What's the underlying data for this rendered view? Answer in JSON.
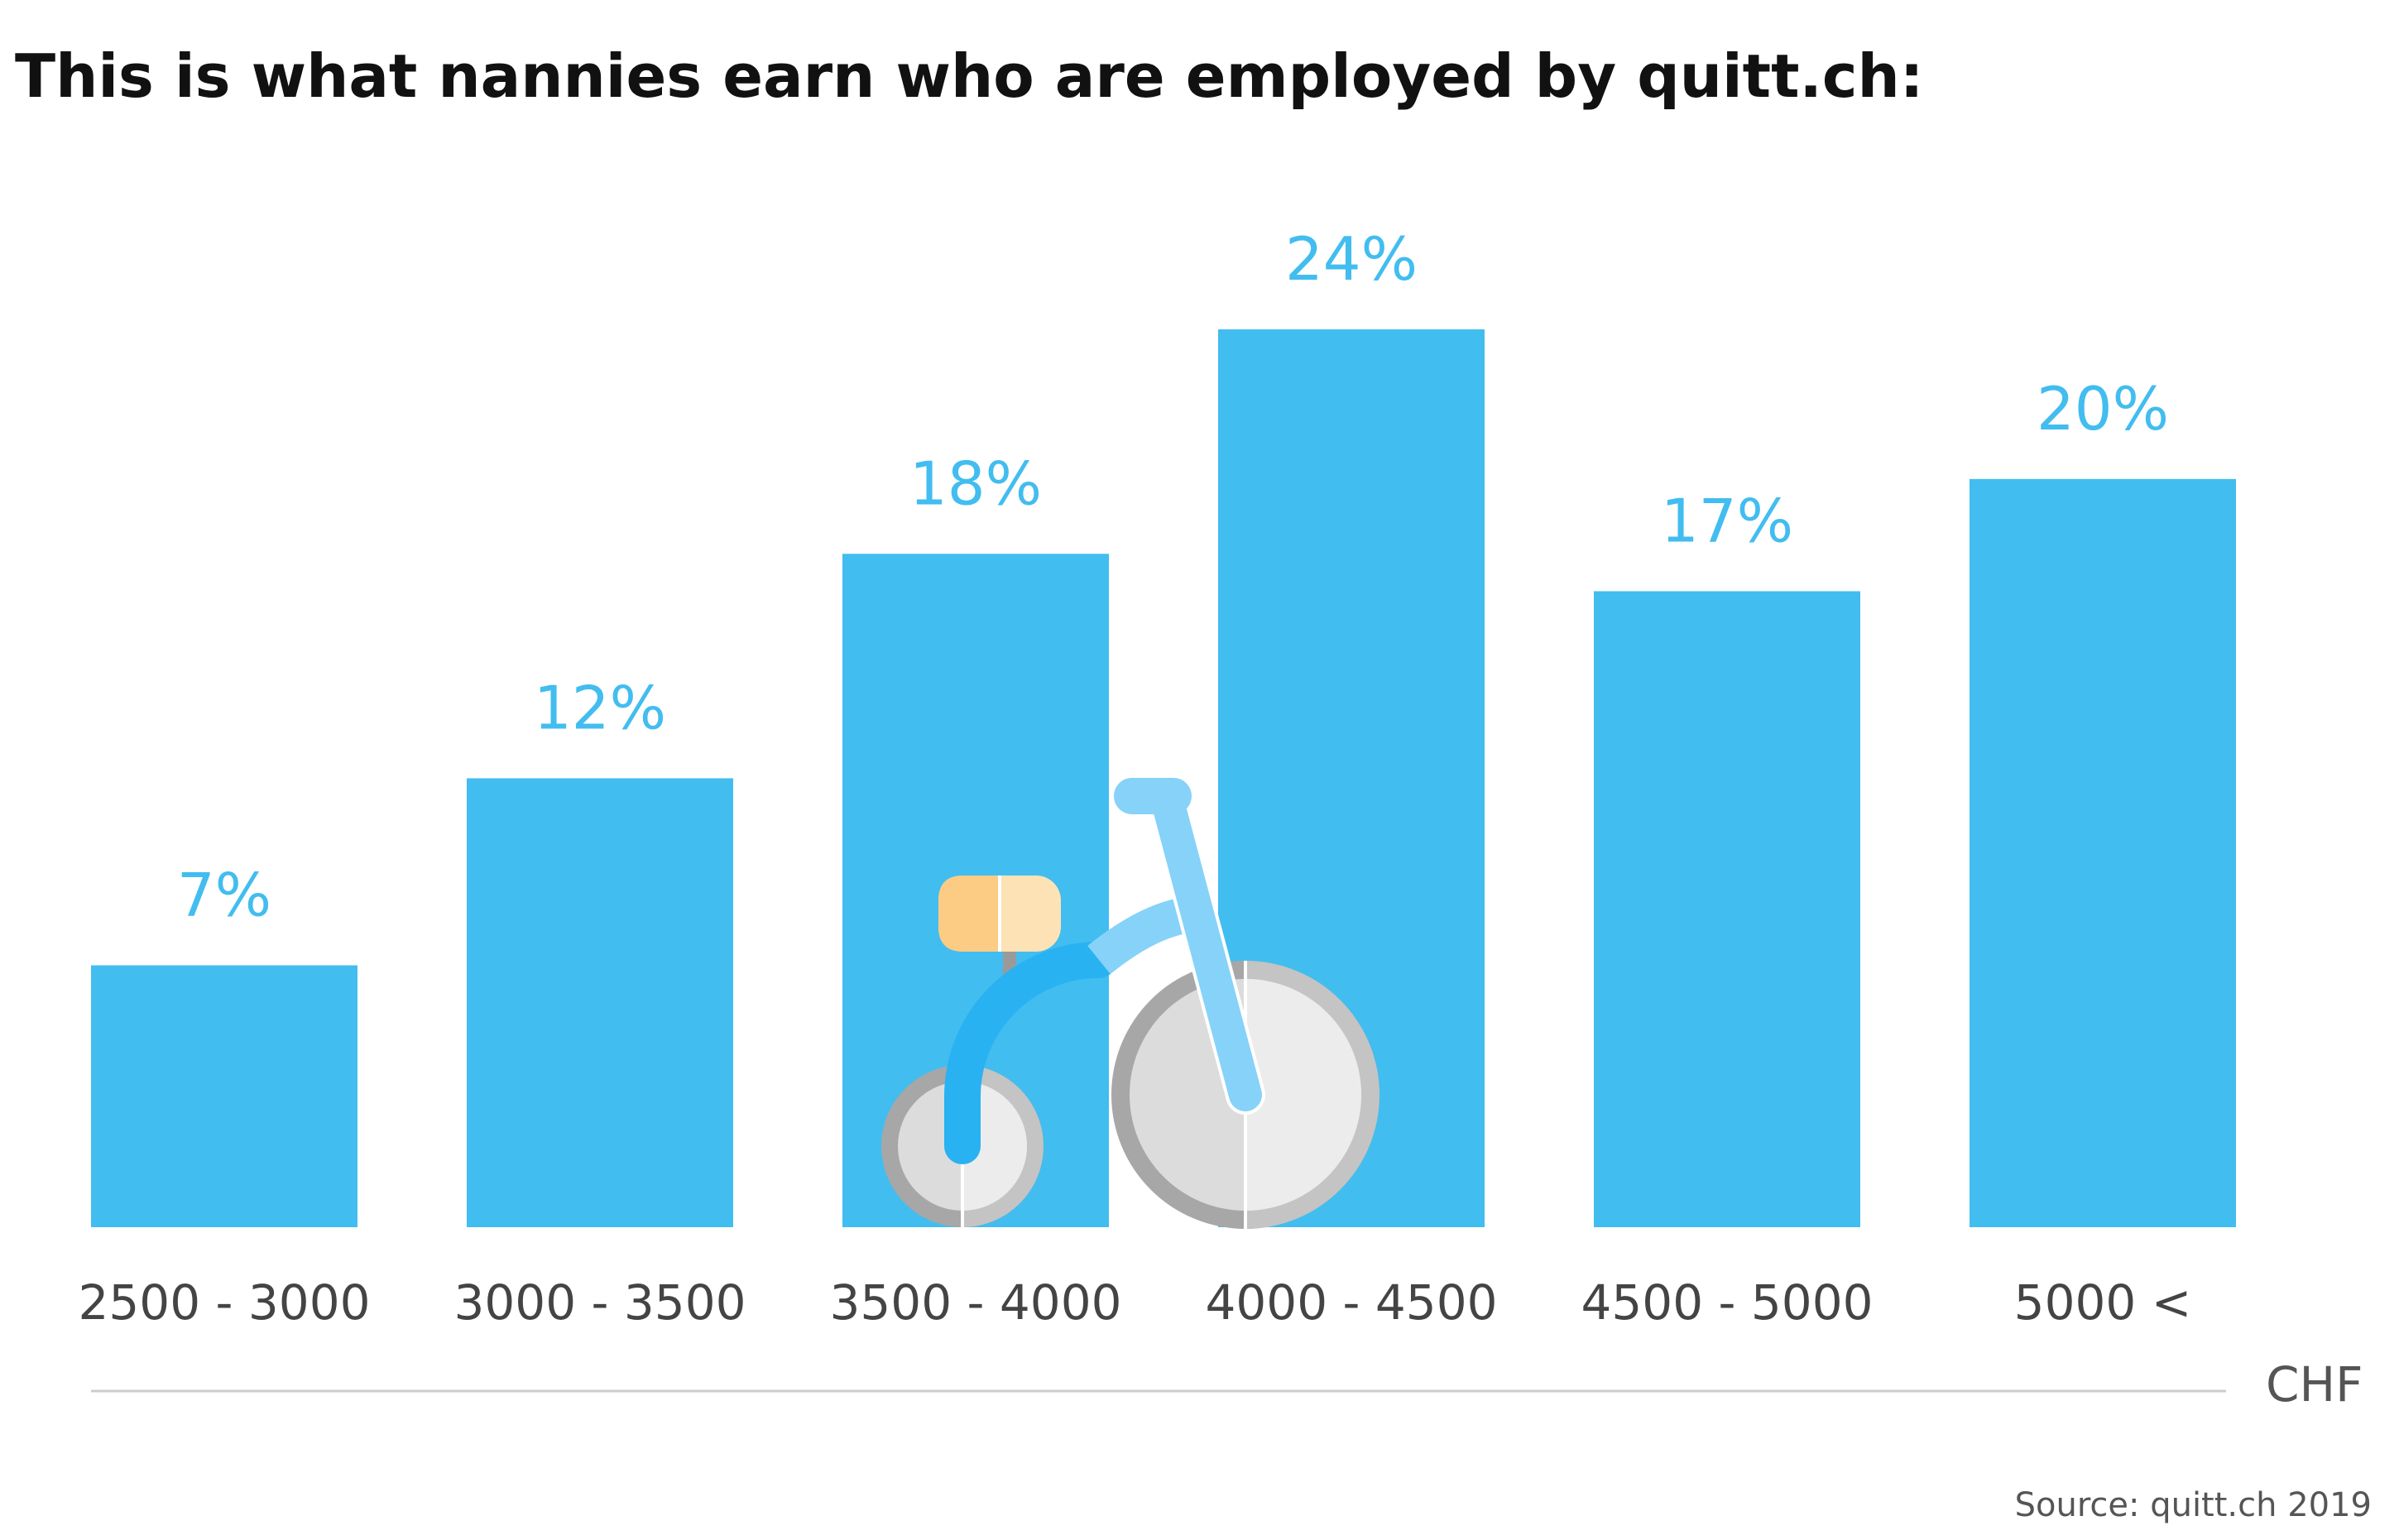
{
  "chart_data": {
    "type": "bar",
    "title": "This is what nannies earn who are employed by quitt.ch:",
    "categories": [
      "2500 - 3000",
      "3000 - 3500",
      "3500 - 4000",
      "4000 - 4500",
      "4500 - 5000",
      "5000 <"
    ],
    "values": [
      7,
      12,
      18,
      24,
      17,
      20
    ],
    "value_labels": [
      "7%",
      "12%",
      "18%",
      "24%",
      "17%",
      "20%"
    ],
    "xlabel": "CHF",
    "ylabel": "",
    "ylim": [
      0,
      24
    ],
    "grid": false,
    "bar_color": "#42bdef"
  },
  "source": "Source: quitt.ch 2019",
  "illustration": {
    "icon": "tricycle-icon",
    "colors": {
      "frame": "#29b2f2",
      "frame_light": "#86d2f9",
      "seat": "#fdcc84",
      "seat_light": "#fde2b5",
      "wheel": "#e2e2e2",
      "wheel_rim": "#a7a7a7"
    }
  },
  "colors": {
    "accent": "#42bdef",
    "text": "#111111",
    "axis_text": "#444444",
    "rule": "#cccccc"
  }
}
